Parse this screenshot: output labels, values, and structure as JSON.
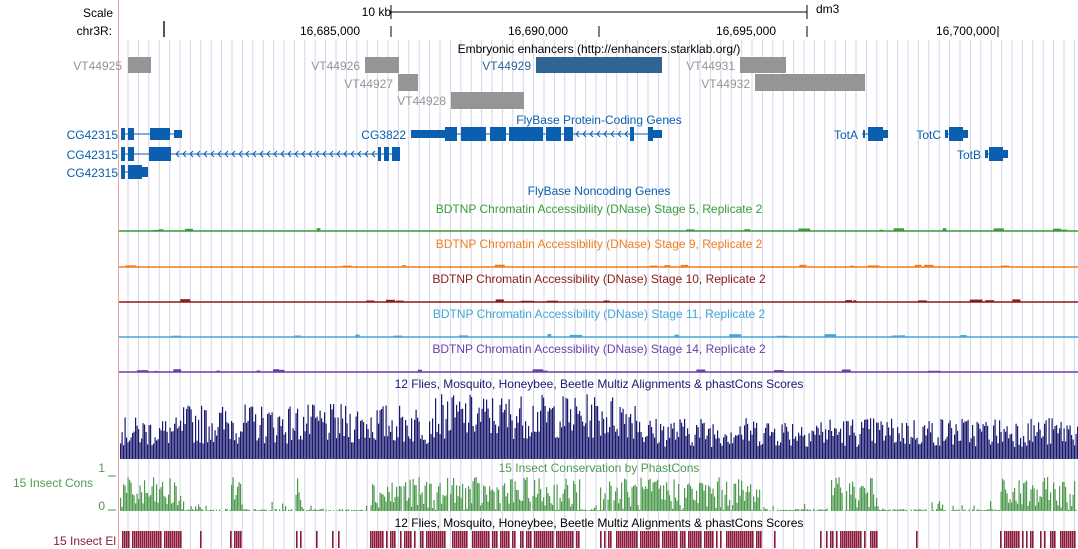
{
  "scale": {
    "label": "Scale",
    "size": "10 kb",
    "assembly": "dm3"
  },
  "position": {
    "chrom": "chr3R:",
    "ticks": [
      "16,685,000",
      "16,690,000",
      "16,695,000",
      "16,700,000"
    ]
  },
  "enhancers": {
    "title": "Embryonic enhancers (http://enhancers.starklab.org/)",
    "items": [
      {
        "label": "VT44925",
        "highlight": false
      },
      {
        "label": "VT44926",
        "highlight": false
      },
      {
        "label": "VT44927",
        "highlight": false
      },
      {
        "label": "VT44928",
        "highlight": false
      },
      {
        "label": "VT44929",
        "highlight": true
      },
      {
        "label": "VT44931",
        "highlight": false
      },
      {
        "label": "VT44932",
        "highlight": false
      }
    ]
  },
  "genes": {
    "title": "FlyBase Protein-Coding Genes",
    "items": [
      {
        "label": "CG42315"
      },
      {
        "label": "CG42315"
      },
      {
        "label": "CG42315"
      },
      {
        "label": "CG3822"
      },
      {
        "label": "TotA"
      },
      {
        "label": "TotC"
      },
      {
        "label": "TotB"
      }
    ]
  },
  "noncoding": {
    "title": "FlyBase Noncoding Genes"
  },
  "dnase": [
    {
      "title": "BDTNP Chromatin Accessibility (DNase) Stage 5, Replicate 2",
      "color": "#3a9c3a"
    },
    {
      "title": "BDTNP Chromatin Accessibility (DNase) Stage 9, Replicate 2",
      "color": "#f07d1e"
    },
    {
      "title": "BDTNP Chromatin Accessibility (DNase) Stage 10, Replicate 2",
      "color": "#8b1a1a"
    },
    {
      "title": "BDTNP Chromatin Accessibility (DNase) Stage 11, Replicate 2",
      "color": "#42a6d6"
    },
    {
      "title": "BDTNP Chromatin Accessibility (DNase) Stage 14, Replicate 2",
      "color": "#6a3fa8"
    }
  ],
  "multiz": {
    "title": "12 Flies, Mosquito, Honeybee, Beetle Multiz Alignments & phastCons Scores"
  },
  "phastcons": {
    "title": "15 Insect Conservation by PhastCons",
    "side_label": "15 Insect Cons",
    "ymax": "1",
    "ymin": "0"
  },
  "elements": {
    "title": "12 Flies, Mosquito, Honeybee, Beetle Multiz Alignments & phastCons Scores",
    "side_label": "15 Insect El"
  },
  "colors": {
    "gene": "#0b5fb0",
    "enhancer": "#959595",
    "enhancer_highlight": "#2e6496",
    "multiz": "#1a1a6e",
    "phastcons": "#4e9b4e",
    "elements": "#8b1a3a",
    "grid": "#c8c8e8",
    "margin_line": "#f0a0a0"
  }
}
